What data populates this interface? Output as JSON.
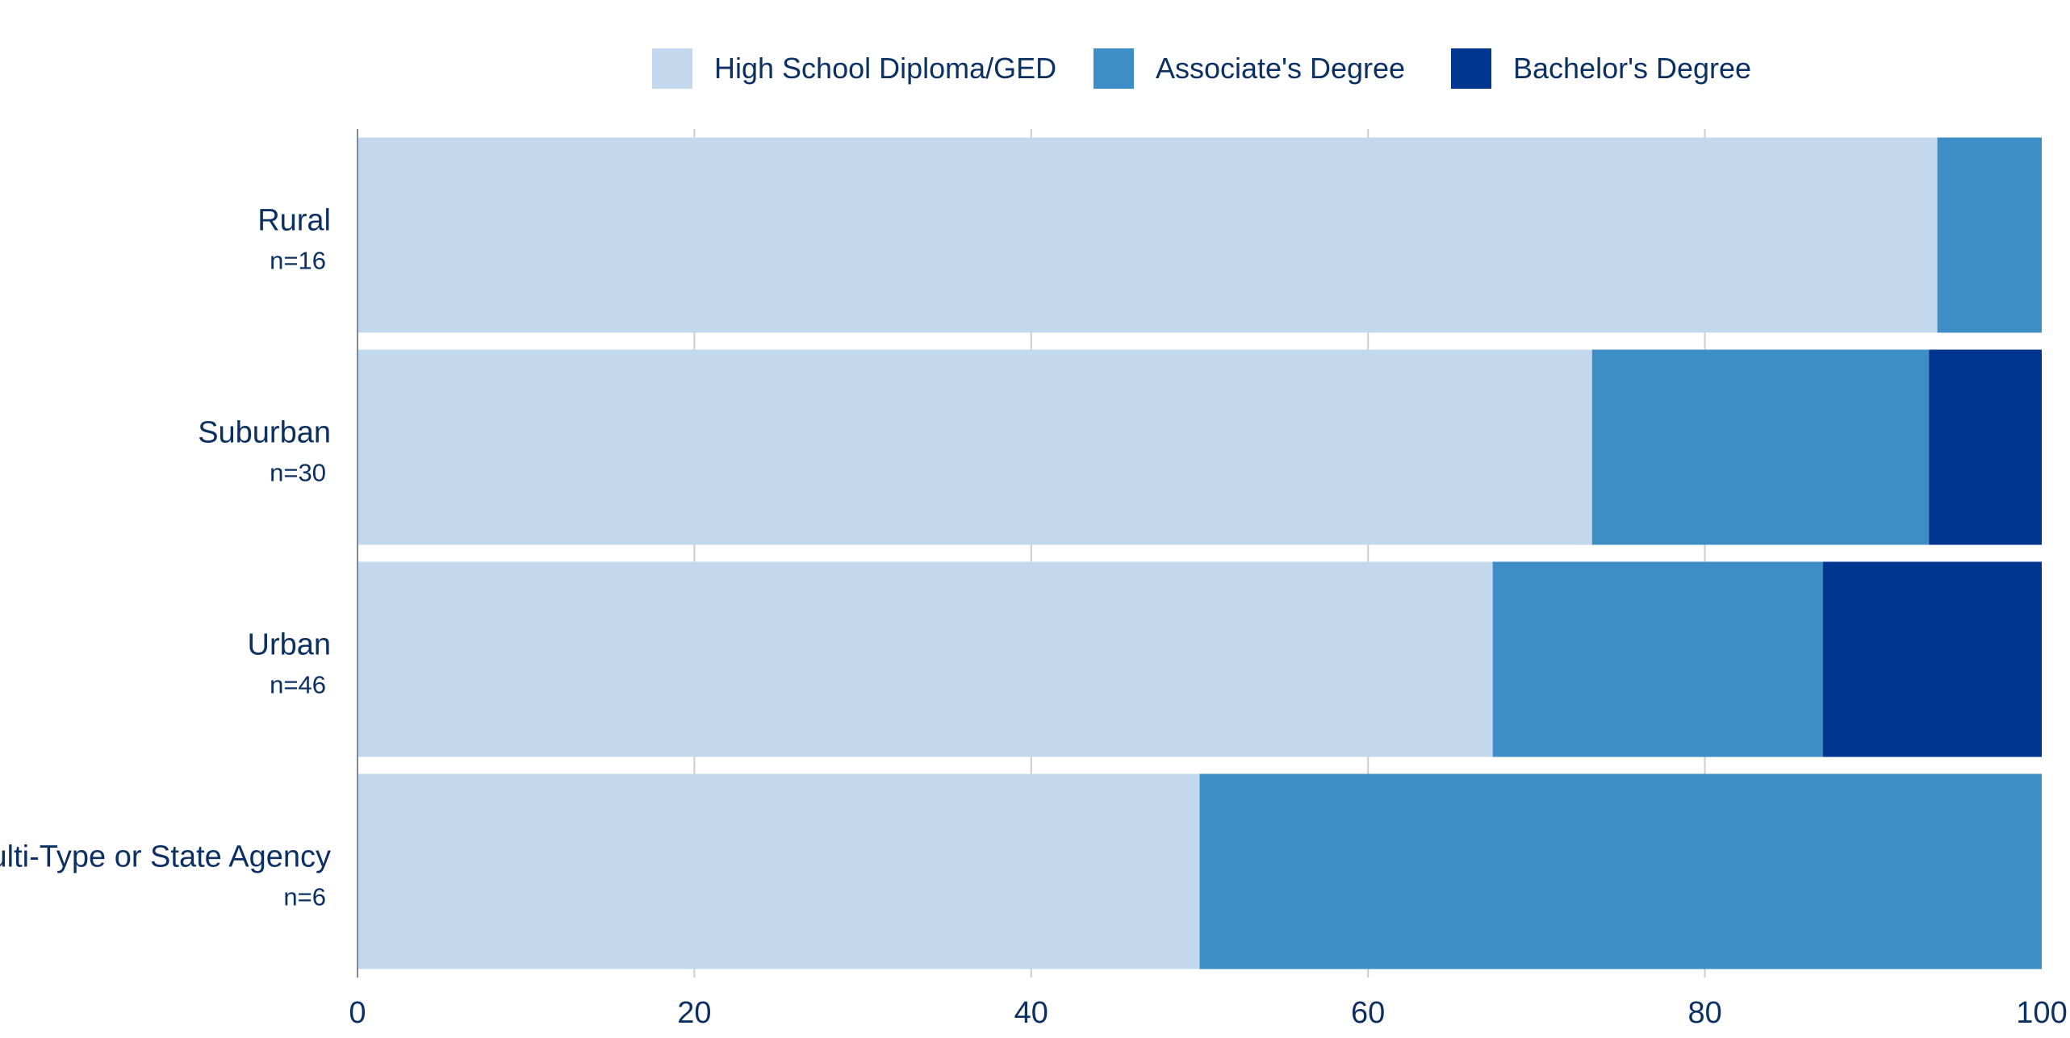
{
  "chart_data": {
    "type": "bar",
    "orientation": "horizontal",
    "stacked": true,
    "title": "",
    "xlabel": "",
    "ylabel": "",
    "xlim": [
      0,
      100
    ],
    "xticks": [
      0,
      20,
      40,
      60,
      80,
      100
    ],
    "grid": true,
    "legend_position": "top-center",
    "categories": [
      {
        "label": "Rural",
        "n_label": "n=16"
      },
      {
        "label": "Suburban",
        "n_label": "n=30"
      },
      {
        "label": "Urban",
        "n_label": "n=46"
      },
      {
        "label": "Multi-Type or State Agency",
        "n_label": "n=6"
      }
    ],
    "series": [
      {
        "name": "High School Diploma/GED",
        "color": "#c3d8ec",
        "values": [
          93.8,
          73.3,
          67.4,
          50.0
        ]
      },
      {
        "name": "Associate's Degree",
        "color": "#3d8ec6",
        "values": [
          6.2,
          20.0,
          19.6,
          50.0
        ]
      },
      {
        "name": "Bachelor's Degree",
        "color": "#013690",
        "values": [
          0.0,
          6.7,
          13.0,
          0.0
        ]
      }
    ]
  }
}
